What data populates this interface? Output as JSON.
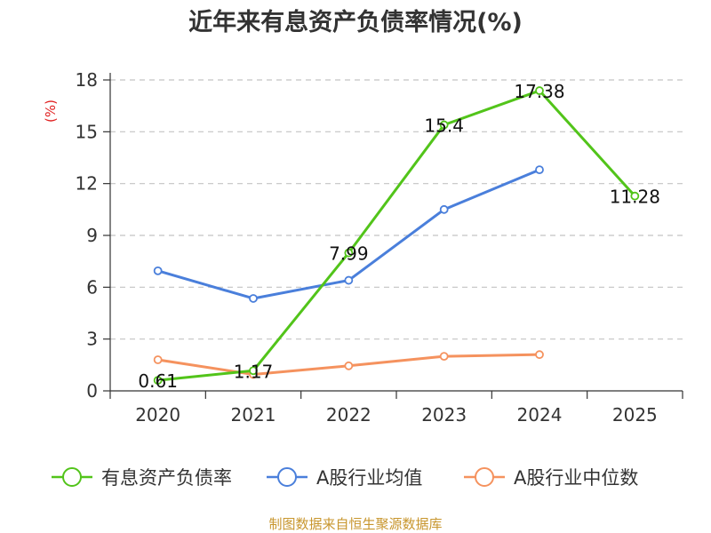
{
  "chart_data": {
    "type": "line",
    "title": "近年来有息资产负债率情况(%)",
    "ylabel": "(%)",
    "xlabel": "",
    "categories": [
      "2020",
      "2021",
      "2022",
      "2023",
      "2024",
      "2025"
    ],
    "ylim": [
      0,
      18
    ],
    "yticks": [
      0,
      3,
      6,
      9,
      12,
      15,
      18
    ],
    "grid": "horizontal-dashed",
    "legend_position": "bottom",
    "series": [
      {
        "name": "有息资产负债率",
        "color": "#52c41a",
        "values": [
          0.61,
          1.17,
          7.99,
          15.4,
          17.38,
          11.28
        ],
        "data_labels": [
          "0.61",
          "1.17",
          "7.99",
          "15.4",
          "17.38",
          "11.28"
        ]
      },
      {
        "name": "A股行业均值",
        "color": "#4a7fdb",
        "values": [
          6.95,
          5.35,
          6.4,
          10.5,
          12.8,
          null
        ]
      },
      {
        "name": "A股行业中位数",
        "color": "#f5925e",
        "values": [
          1.8,
          0.95,
          1.45,
          2.0,
          2.1,
          null
        ]
      }
    ]
  },
  "source_text": "制图数据来自恒生聚源数据库"
}
